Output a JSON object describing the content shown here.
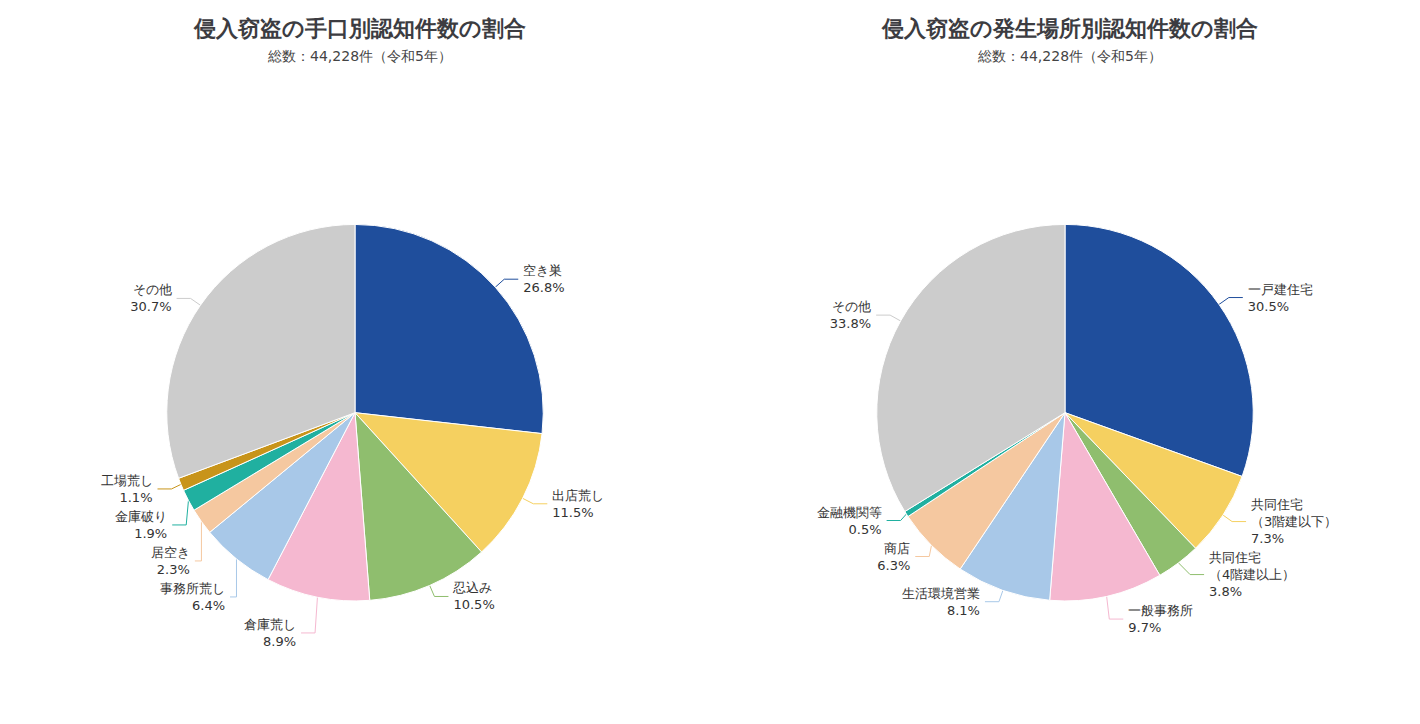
{
  "chart_data": [
    {
      "type": "pie",
      "title": "侵入窃盗の手口別認知件数の割合",
      "subtitle": "総数：44,228件（令和5年）",
      "categories": [
        "空き巣",
        "出店荒し",
        "忍込み",
        "倉庫荒し",
        "事務所荒し",
        "居空き",
        "金庫破り",
        "工場荒し",
        "その他"
      ],
      "values": [
        26.8,
        11.5,
        10.5,
        8.9,
        6.4,
        2.3,
        1.9,
        1.1,
        30.7
      ],
      "value_labels": [
        "26.8%",
        "11.5%",
        "10.5%",
        "8.9%",
        "6.4%",
        "2.3%",
        "1.9%",
        "1.1%",
        "30.7%"
      ],
      "colors": [
        "#1f4e9c",
        "#f5d060",
        "#8fbe6e",
        "#f5b8d0",
        "#a8c8e8",
        "#f5c8a0",
        "#20b0a0",
        "#c8941a",
        "#cccccc"
      ],
      "data_labels": true
    },
    {
      "type": "pie",
      "title": "侵入窃盗の発生場所別認知件数の割合",
      "subtitle": "総数：44,228件（令和5年）",
      "categories": [
        "一戸建住宅",
        "共同住宅\n（3階建以下）",
        "共同住宅\n（4階建以上）",
        "一般事務所",
        "生活環境営業",
        "商店",
        "金融機関等",
        "その他"
      ],
      "values": [
        30.5,
        7.3,
        3.8,
        9.7,
        8.1,
        6.3,
        0.5,
        33.8
      ],
      "value_labels": [
        "30.5%",
        "7.3%",
        "3.8%",
        "9.7%",
        "8.1%",
        "6.3%",
        "0.5%",
        "33.8%"
      ],
      "colors": [
        "#1f4e9c",
        "#f5d060",
        "#8fbe6e",
        "#f5b8d0",
        "#a8c8e8",
        "#f5c8a0",
        "#20b0a0",
        "#cccccc"
      ],
      "data_labels": true
    }
  ]
}
